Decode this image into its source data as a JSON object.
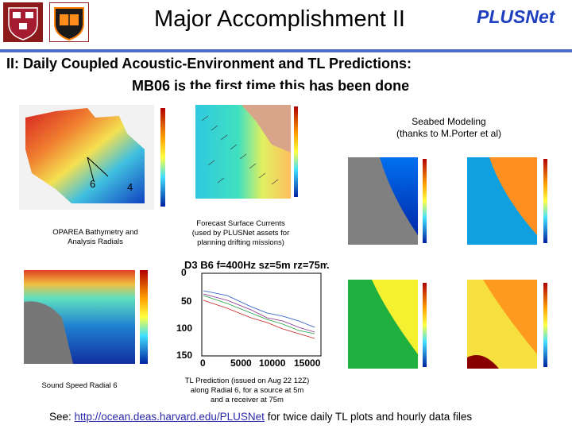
{
  "header": {
    "title": "Major Accomplishment II",
    "brand": "PLUSNet",
    "logos": [
      "harvard-shield-icon",
      "princeton-shield-icon"
    ]
  },
  "heading": "II:  Daily Coupled Acoustic-Environment and TL Predictions:",
  "subheading": "MB06 is the first time this has been done",
  "panels": {
    "bathymetry": {
      "caption_line1": "OPAREA Bathymetry and",
      "caption_line2": "Analysis Radials",
      "radial_labels": [
        "6",
        "4"
      ]
    },
    "currents": {
      "caption_line1": "Forecast Surface Currents",
      "caption_line2": "(used by PLUSNet assets for",
      "caption_line3": "planning drifting missions)"
    },
    "sound_speed": {
      "caption": "Sound Speed Radial 6"
    },
    "tl": {
      "title": "D3 B6 f=400Hz sz=5m rz=75m",
      "y_ticks": [
        "0",
        "50",
        "100",
        "150"
      ],
      "x_ticks": [
        "0",
        "5000",
        "10000",
        "15000"
      ],
      "caption_line1": "TL Prediction (issued on Aug 22 12Z)",
      "caption_line2": "along Radial 6, for a source at 5m",
      "caption_line3": "and a receiver at 75m"
    },
    "seabed": {
      "caption_line1": "Seabed Modeling",
      "caption_line2": "(thanks to M.Porter et al)"
    }
  },
  "footer": {
    "prefix": "See: ",
    "link": "http://ocean.deas.harvard.edu/PLUSNet",
    "suffix": "  for twice daily TL plots and hourly data files"
  },
  "colors": {
    "divider": "#4b6cc9",
    "brand": "#1f3fbf",
    "crimson": "#8b1a1a"
  }
}
